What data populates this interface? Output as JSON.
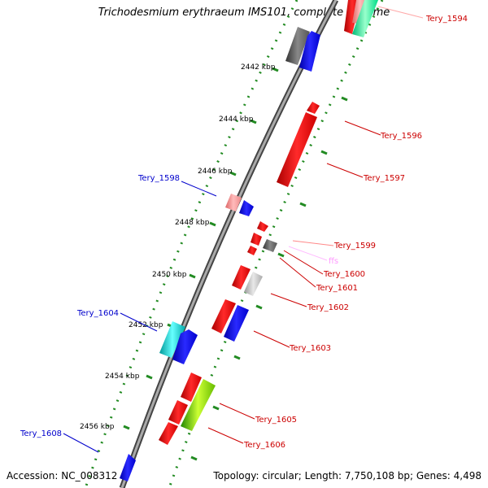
{
  "title": "Trichodesmium erythraeum IMS101, complete genome",
  "accession": "Accession: NC_008312",
  "topology": "Topology: circular; Length: 7,750,108 bp; Genes: 4,498",
  "kbp_labels": [
    "2442 kbp",
    "2444 kbp",
    "2446 kbp",
    "2448 kbp",
    "2450 kbp",
    "2452 kbp",
    "2454 kbp",
    "2456 kbp"
  ],
  "gene_labels": [
    {
      "id": "Tery_1594",
      "color": "#cc0000"
    },
    {
      "id": "Tery_1596",
      "color": "#cc0000"
    },
    {
      "id": "Tery_1597",
      "color": "#cc0000"
    },
    {
      "id": "Tery_1598",
      "color": "#0000cc"
    },
    {
      "id": "Tery_1599",
      "color": "#cc0000"
    },
    {
      "id": "ffs",
      "color": "#ff99ff"
    },
    {
      "id": "Tery_1600",
      "color": "#cc0000"
    },
    {
      "id": "Tery_1601",
      "color": "#cc0000"
    },
    {
      "id": "Tery_1602",
      "color": "#cc0000"
    },
    {
      "id": "Tery_1603",
      "color": "#cc0000"
    },
    {
      "id": "Tery_1604",
      "color": "#0000cc"
    },
    {
      "id": "Tery_1605",
      "color": "#cc0000"
    },
    {
      "id": "Tery_1606",
      "color": "#cc0000"
    },
    {
      "id": "Tery_1608",
      "color": "#0000cc"
    }
  ],
  "colors": {
    "backbone": "#808080",
    "tick_dots": "#228b22",
    "red_gene": "#ff0000",
    "blue_gene": "#0000ff",
    "cyan_gene": "#00cccc",
    "green_gene": "#66cc00",
    "grey_gene": "#666666",
    "pink_gene": "#ff8888",
    "teal_gene": "#00ff99"
  }
}
